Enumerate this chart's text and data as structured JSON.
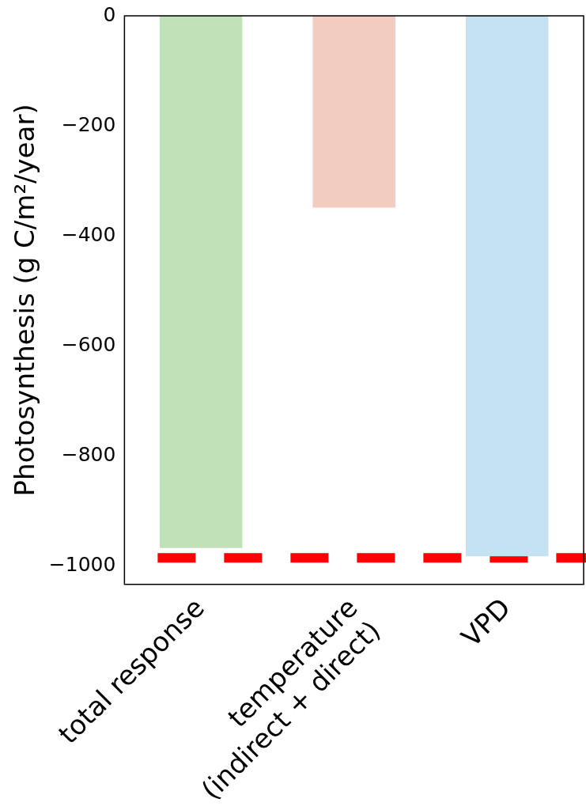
{
  "chart_data": {
    "type": "bar",
    "ylabel": "Photosynthesis (g C/m²/year)",
    "categories": [
      "total response",
      "temperature\n(indirect + direct)",
      "VPD"
    ],
    "values": [
      -968,
      -349,
      -983
    ],
    "colors": [
      "#c0e2b8",
      "#f2cbc1",
      "#c5e2f3"
    ],
    "ylim": [
      -1034,
      0
    ],
    "yticks": [
      0,
      -200,
      -400,
      -600,
      -800,
      -1000
    ],
    "grid": false,
    "legend": false,
    "ref_lines": [
      {
        "axis": "y",
        "value": -986,
        "color": "#ff0000",
        "line_style": "dashed"
      }
    ]
  }
}
